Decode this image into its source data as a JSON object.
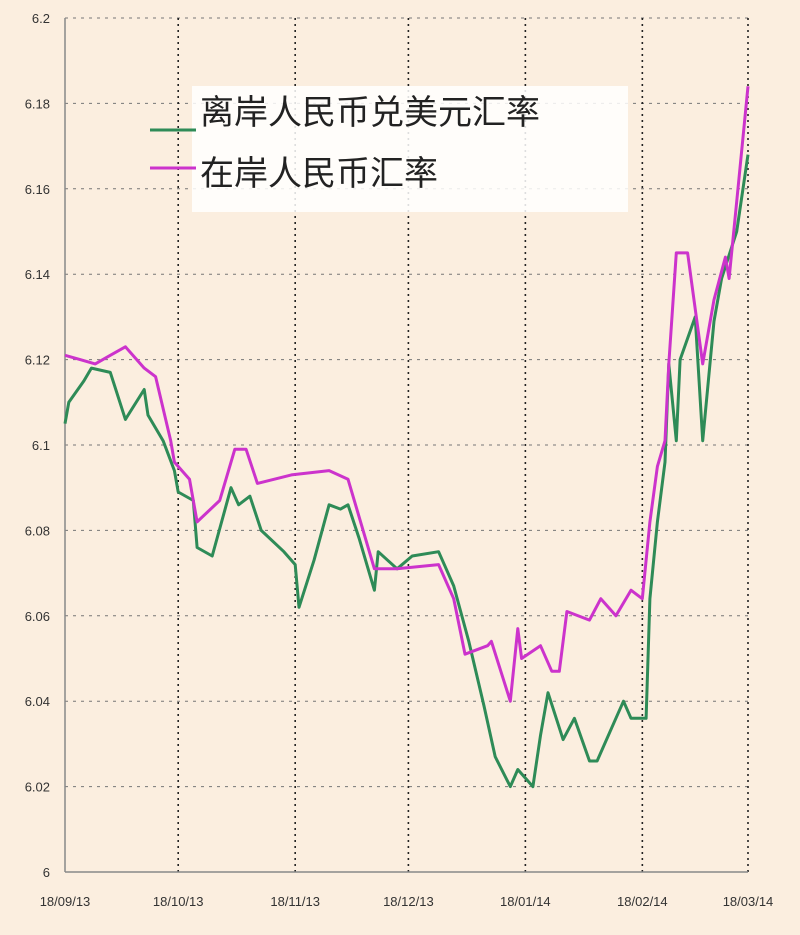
{
  "chart_data": {
    "type": "line",
    "title": "",
    "xlabel": "",
    "ylabel": "",
    "xlim": [
      "2013-09-18",
      "2014-03-18"
    ],
    "ylim": [
      6.0,
      6.2
    ],
    "grid": true,
    "legend_position": "top",
    "y_ticks": [
      "6",
      "6.02",
      "6.04",
      "6.06",
      "6.08",
      "6.1",
      "6.12",
      "6.14",
      "6.16",
      "6.18",
      "6.2"
    ],
    "x_ticks": [
      {
        "label": "18/09/13",
        "date": "2013-09-18"
      },
      {
        "label": "18/10/13",
        "date": "2013-10-18"
      },
      {
        "label": "18/11/13",
        "date": "2013-11-18"
      },
      {
        "label": "18/12/13",
        "date": "2013-12-18"
      },
      {
        "label": "18/01/14",
        "date": "2014-01-18"
      },
      {
        "label": "18/02/14",
        "date": "2014-02-18"
      },
      {
        "label": "18/03/14",
        "date": "2014-03-18"
      }
    ],
    "series": [
      {
        "name": "离岸人民币兑美元汇率",
        "color": "#2e8b57",
        "points": [
          [
            "2013-09-18",
            6.105
          ],
          [
            "2013-09-19",
            6.11
          ],
          [
            "2013-09-23",
            6.115
          ],
          [
            "2013-09-25",
            6.118
          ],
          [
            "2013-09-30",
            6.117
          ],
          [
            "2013-10-04",
            6.106
          ],
          [
            "2013-10-09",
            6.113
          ],
          [
            "2013-10-10",
            6.107
          ],
          [
            "2013-10-14",
            6.101
          ],
          [
            "2013-10-17",
            6.094
          ],
          [
            "2013-10-18",
            6.089
          ],
          [
            "2013-10-22",
            6.087
          ],
          [
            "2013-10-23",
            6.076
          ],
          [
            "2013-10-27",
            6.074
          ],
          [
            "2013-11-01",
            6.09
          ],
          [
            "2013-11-03",
            6.086
          ],
          [
            "2013-11-06",
            6.088
          ],
          [
            "2013-11-09",
            6.08
          ],
          [
            "2013-11-15",
            6.075
          ],
          [
            "2013-11-18",
            6.072
          ],
          [
            "2013-11-19",
            6.062
          ],
          [
            "2013-11-23",
            6.073
          ],
          [
            "2013-11-27",
            6.086
          ],
          [
            "2013-11-30",
            6.085
          ],
          [
            "2013-12-02",
            6.086
          ],
          [
            "2013-12-05",
            6.078
          ],
          [
            "2013-12-09",
            6.066
          ],
          [
            "2013-12-10",
            6.075
          ],
          [
            "2013-12-15",
            6.071
          ],
          [
            "2013-12-19",
            6.074
          ],
          [
            "2013-12-26",
            6.075
          ],
          [
            "2013-12-30",
            6.067
          ],
          [
            "2014-01-03",
            6.054
          ],
          [
            "2014-01-07",
            6.039
          ],
          [
            "2014-01-10",
            6.027
          ],
          [
            "2014-01-14",
            6.02
          ],
          [
            "2014-01-16",
            6.024
          ],
          [
            "2014-01-20",
            6.02
          ],
          [
            "2014-01-22",
            6.032
          ],
          [
            "2014-01-24",
            6.042
          ],
          [
            "2014-01-28",
            6.031
          ],
          [
            "2014-01-31",
            6.036
          ],
          [
            "2014-02-04",
            6.026
          ],
          [
            "2014-02-06",
            6.026
          ],
          [
            "2014-02-11",
            6.036
          ],
          [
            "2014-02-13",
            6.04
          ],
          [
            "2014-02-15",
            6.036
          ],
          [
            "2014-02-19",
            6.036
          ],
          [
            "2014-02-20",
            6.064
          ],
          [
            "2014-02-22",
            6.082
          ],
          [
            "2014-02-24",
            6.096
          ],
          [
            "2014-02-25",
            6.119
          ],
          [
            "2014-02-27",
            6.101
          ],
          [
            "2014-02-28",
            6.12
          ],
          [
            "2014-03-04",
            6.13
          ],
          [
            "2014-03-06",
            6.101
          ],
          [
            "2014-03-09",
            6.129
          ],
          [
            "2014-03-11",
            6.139
          ],
          [
            "2014-03-15",
            6.15
          ],
          [
            "2014-03-18",
            6.168
          ]
        ]
      },
      {
        "name": "在岸人民币汇率",
        "color": "#cc33cc",
        "points": [
          [
            "2013-09-18",
            6.121
          ],
          [
            "2013-09-22",
            6.12
          ],
          [
            "2013-09-26",
            6.119
          ],
          [
            "2013-09-30",
            6.121
          ],
          [
            "2013-10-04",
            6.123
          ],
          [
            "2013-10-09",
            6.118
          ],
          [
            "2013-10-12",
            6.116
          ],
          [
            "2013-10-16",
            6.101
          ],
          [
            "2013-10-17",
            6.096
          ],
          [
            "2013-10-21",
            6.092
          ],
          [
            "2013-10-23",
            6.082
          ],
          [
            "2013-10-29",
            6.087
          ],
          [
            "2013-11-02",
            6.099
          ],
          [
            "2013-11-05",
            6.099
          ],
          [
            "2013-11-08",
            6.091
          ],
          [
            "2013-11-17",
            6.093
          ],
          [
            "2013-11-27",
            6.094
          ],
          [
            "2013-12-02",
            6.092
          ],
          [
            "2013-12-06",
            6.08
          ],
          [
            "2013-12-09",
            6.071
          ],
          [
            "2013-12-15",
            6.071
          ],
          [
            "2013-12-26",
            6.072
          ],
          [
            "2013-12-30",
            6.064
          ],
          [
            "2014-01-02",
            6.051
          ],
          [
            "2014-01-08",
            6.053
          ],
          [
            "2014-01-09",
            6.054
          ],
          [
            "2014-01-14",
            6.04
          ],
          [
            "2014-01-16",
            6.057
          ],
          [
            "2014-01-17",
            6.05
          ],
          [
            "2014-01-22",
            6.053
          ],
          [
            "2014-01-25",
            6.047
          ],
          [
            "2014-01-27",
            6.047
          ],
          [
            "2014-01-29",
            6.061
          ],
          [
            "2014-02-04",
            6.059
          ],
          [
            "2014-02-07",
            6.064
          ],
          [
            "2014-02-11",
            6.06
          ],
          [
            "2014-02-15",
            6.066
          ],
          [
            "2014-02-18",
            6.064
          ],
          [
            "2014-02-20",
            6.082
          ],
          [
            "2014-02-22",
            6.095
          ],
          [
            "2014-02-24",
            6.101
          ],
          [
            "2014-02-25",
            6.119
          ],
          [
            "2014-02-27",
            6.145
          ],
          [
            "2014-03-02",
            6.145
          ],
          [
            "2014-03-06",
            6.119
          ],
          [
            "2014-03-09",
            6.134
          ],
          [
            "2014-03-12",
            6.144
          ],
          [
            "2014-03-13",
            6.139
          ],
          [
            "2014-03-15",
            6.157
          ],
          [
            "2014-03-18",
            6.184
          ]
        ]
      }
    ]
  },
  "colors": {
    "background": "#fbeedf",
    "offshore": "#2e8b57",
    "onshore": "#cc33cc"
  }
}
